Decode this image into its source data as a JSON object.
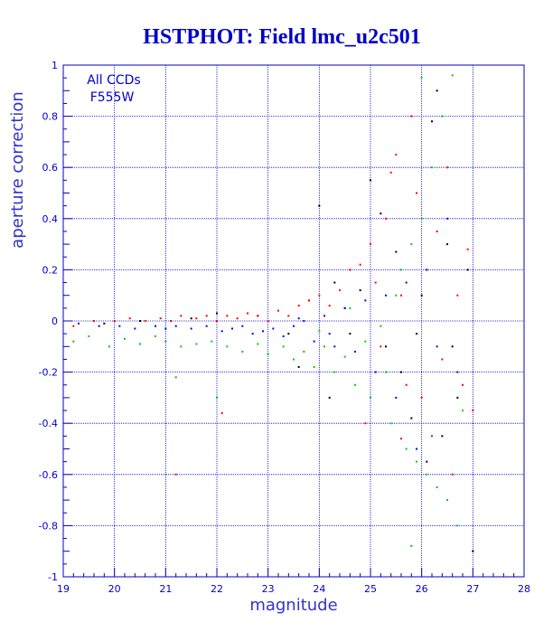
{
  "chart_data": {
    "type": "scatter",
    "title": "HSTPHOT: Field lmc_u2c501",
    "xlabel": "magnitude",
    "ylabel": "aperture correction",
    "xlim": [
      19,
      28
    ],
    "ylim": [
      -1,
      1
    ],
    "x_ticks": [
      "19",
      "20",
      "21",
      "22",
      "23",
      "24",
      "25",
      "26",
      "27",
      "28"
    ],
    "y_ticks": [
      "-1",
      "-0.8",
      "-0.6",
      "-0.4",
      "-0.2",
      "0",
      "0.2",
      "0.4",
      "0.6",
      "0.8",
      "1"
    ],
    "grid": true,
    "annotations": [
      "All CCDs",
      "F555W"
    ],
    "colors": {
      "frame": "#0000cc",
      "grid": "#0000cc",
      "text": "#0000cc",
      "background": "#ffffff"
    },
    "series": [
      {
        "color": "#000000",
        "points": [
          [
            23.6,
            -0.18
          ],
          [
            24.0,
            0.45
          ],
          [
            24.2,
            -0.3
          ],
          [
            24.5,
            0.05
          ],
          [
            24.8,
            0.12
          ],
          [
            25.0,
            0.55
          ],
          [
            25.2,
            0.42
          ],
          [
            25.3,
            -0.1
          ],
          [
            25.5,
            0.27
          ],
          [
            25.6,
            -0.2
          ],
          [
            25.8,
            -0.38
          ],
          [
            25.9,
            -0.05
          ],
          [
            26.0,
            0.1
          ],
          [
            26.1,
            -0.55
          ],
          [
            26.2,
            0.78
          ],
          [
            26.3,
            0.9
          ],
          [
            26.4,
            -0.45
          ],
          [
            26.5,
            0.3
          ],
          [
            26.6,
            -0.1
          ],
          [
            26.7,
            -0.3
          ],
          [
            27.0,
            -0.9
          ],
          [
            26.9,
            0.2
          ],
          [
            24.6,
            -0.05
          ],
          [
            24.3,
            0.15
          ],
          [
            23.8,
            0.08
          ],
          [
            23.4,
            -0.05
          ],
          [
            22.8,
            0.02
          ],
          [
            22.0,
            0.03
          ],
          [
            21.5,
            0.01
          ],
          [
            20.5,
            0.0
          ],
          [
            19.8,
            -0.01
          ]
        ]
      },
      {
        "color": "#ff0000",
        "points": [
          [
            19.2,
            -0.02
          ],
          [
            19.6,
            0.0
          ],
          [
            20.0,
            0.0
          ],
          [
            20.3,
            0.01
          ],
          [
            20.6,
            0.0
          ],
          [
            20.9,
            0.01
          ],
          [
            21.1,
            0.0
          ],
          [
            21.3,
            0.02
          ],
          [
            21.6,
            0.01
          ],
          [
            21.8,
            0.02
          ],
          [
            22.0,
            0.0
          ],
          [
            22.2,
            0.02
          ],
          [
            22.4,
            0.01
          ],
          [
            22.6,
            0.03
          ],
          [
            22.8,
            0.02
          ],
          [
            23.0,
            0.0
          ],
          [
            23.2,
            0.04
          ],
          [
            23.4,
            0.02
          ],
          [
            23.6,
            0.06
          ],
          [
            23.8,
            0.08
          ],
          [
            24.0,
            0.1
          ],
          [
            24.2,
            0.06
          ],
          [
            24.4,
            0.12
          ],
          [
            24.6,
            0.2
          ],
          [
            24.8,
            0.22
          ],
          [
            25.0,
            0.3
          ],
          [
            25.1,
            0.15
          ],
          [
            25.2,
            -0.1
          ],
          [
            25.3,
            0.4
          ],
          [
            25.4,
            0.58
          ],
          [
            25.5,
            0.65
          ],
          [
            25.6,
            0.1
          ],
          [
            25.7,
            -0.25
          ],
          [
            25.8,
            0.8
          ],
          [
            25.9,
            0.5
          ],
          [
            26.0,
            -0.3
          ],
          [
            26.1,
            0.2
          ],
          [
            26.2,
            -0.45
          ],
          [
            26.3,
            0.35
          ],
          [
            26.4,
            -0.15
          ],
          [
            26.5,
            0.6
          ],
          [
            26.6,
            -0.6
          ],
          [
            26.7,
            0.1
          ],
          [
            26.8,
            -0.25
          ],
          [
            26.9,
            0.28
          ],
          [
            27.0,
            -0.35
          ],
          [
            21.2,
            -0.6
          ],
          [
            22.1,
            -0.36
          ],
          [
            24.9,
            -0.4
          ],
          [
            25.6,
            -0.46
          ]
        ]
      },
      {
        "color": "#0000ff",
        "points": [
          [
            19.3,
            -0.01
          ],
          [
            19.7,
            -0.02
          ],
          [
            20.1,
            -0.02
          ],
          [
            20.4,
            -0.03
          ],
          [
            20.8,
            -0.02
          ],
          [
            21.0,
            -0.03
          ],
          [
            21.2,
            -0.02
          ],
          [
            21.5,
            -0.03
          ],
          [
            21.8,
            -0.02
          ],
          [
            22.1,
            -0.04
          ],
          [
            22.3,
            -0.03
          ],
          [
            22.5,
            -0.02
          ],
          [
            22.7,
            -0.05
          ],
          [
            22.9,
            -0.04
          ],
          [
            23.1,
            -0.03
          ],
          [
            23.3,
            -0.06
          ],
          [
            23.5,
            -0.02
          ],
          [
            23.7,
            0.0
          ],
          [
            23.9,
            -0.08
          ],
          [
            24.1,
            0.02
          ],
          [
            24.3,
            -0.1
          ],
          [
            24.5,
            0.05
          ],
          [
            24.7,
            -0.12
          ],
          [
            24.9,
            0.08
          ],
          [
            25.1,
            -0.2
          ],
          [
            25.3,
            0.1
          ],
          [
            25.5,
            -0.3
          ],
          [
            25.7,
            0.15
          ],
          [
            25.9,
            -0.5
          ],
          [
            26.1,
            0.2
          ],
          [
            26.3,
            -0.1
          ],
          [
            26.5,
            0.4
          ],
          [
            26.7,
            -0.2
          ],
          [
            24.2,
            -0.05
          ],
          [
            23.6,
            0.01
          ]
        ]
      },
      {
        "color": "#00cc00",
        "points": [
          [
            19.2,
            -0.08
          ],
          [
            19.5,
            -0.06
          ],
          [
            19.9,
            -0.1
          ],
          [
            20.2,
            -0.07
          ],
          [
            20.5,
            -0.09
          ],
          [
            20.8,
            -0.06
          ],
          [
            21.0,
            -0.08
          ],
          [
            21.3,
            -0.1
          ],
          [
            21.6,
            -0.09
          ],
          [
            21.9,
            -0.08
          ],
          [
            22.2,
            -0.1
          ],
          [
            22.5,
            -0.12
          ],
          [
            22.8,
            -0.09
          ],
          [
            23.0,
            -0.13
          ],
          [
            23.3,
            -0.1
          ],
          [
            23.5,
            -0.15
          ],
          [
            23.7,
            -0.12
          ],
          [
            23.9,
            -0.18
          ],
          [
            24.1,
            -0.1
          ],
          [
            24.3,
            -0.2
          ],
          [
            24.5,
            -0.14
          ],
          [
            24.7,
            -0.25
          ],
          [
            24.9,
            -0.08
          ],
          [
            25.0,
            -0.3
          ],
          [
            25.2,
            -0.02
          ],
          [
            25.4,
            -0.4
          ],
          [
            25.5,
            0.1
          ],
          [
            25.7,
            -0.5
          ],
          [
            25.8,
            0.3
          ],
          [
            25.9,
            -0.55
          ],
          [
            26.0,
            0.4
          ],
          [
            26.1,
            -0.6
          ],
          [
            26.2,
            0.6
          ],
          [
            26.3,
            -0.65
          ],
          [
            26.4,
            0.8
          ],
          [
            26.5,
            -0.7
          ],
          [
            26.6,
            0.96
          ],
          [
            26.7,
            -0.8
          ],
          [
            25.6,
            0.2
          ],
          [
            25.3,
            -0.2
          ],
          [
            24.6,
            0.05
          ],
          [
            24.0,
            -0.04
          ],
          [
            26.8,
            -0.35
          ],
          [
            25.8,
            -0.88
          ],
          [
            21.2,
            -0.22
          ],
          [
            22.0,
            -0.3
          ],
          [
            26.0,
            0.95
          ]
        ]
      }
    ]
  }
}
